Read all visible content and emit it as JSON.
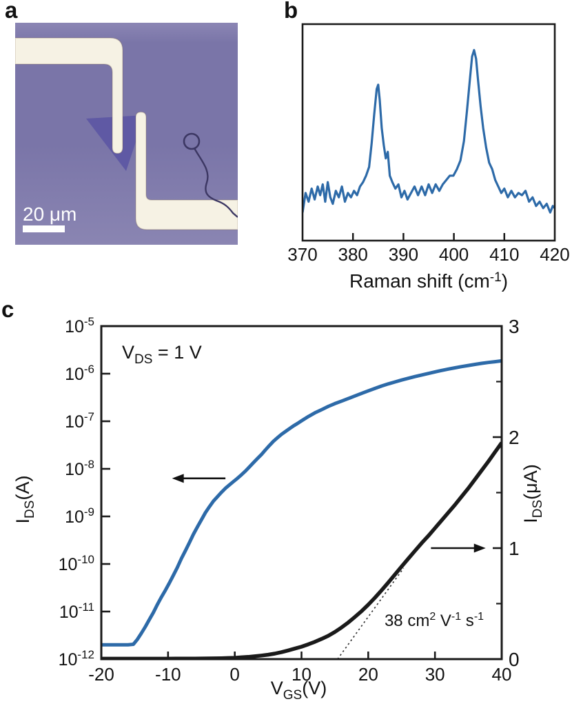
{
  "figure": {
    "type": "scientific-figure",
    "description_visible_panels": [
      "a",
      "b",
      "c"
    ]
  },
  "panels": {
    "a": {
      "label": "a",
      "scale_bar_text": "20 μm",
      "colors": {
        "background_top": "#8b86b4",
        "background": "#7a75a8",
        "background_bottom": "#8a85b2",
        "electrode": "#f6f2e4",
        "flake": "#5f59a4",
        "wire": "#3c3763",
        "scale_bar": "#ffffff"
      }
    },
    "b": {
      "label": "b"
    },
    "c": {
      "label": "c"
    }
  },
  "chart_data": [
    {
      "id": "raman-spectrum",
      "type": "line",
      "title": "",
      "xlabel_segments": [
        {
          "t": "Raman shift (cm"
        },
        {
          "t": "-1",
          "type": "sup"
        },
        {
          "t": ")"
        }
      ],
      "xlim": [
        370,
        420
      ],
      "x_ticks": [
        370,
        380,
        390,
        400,
        410,
        420
      ],
      "ylim": [
        0,
        1
      ],
      "grid": false,
      "legend": "none",
      "line_color": "#2d6aa8",
      "peaks_cm1": [
        385,
        404
      ],
      "points": [
        [
          370,
          0.13
        ],
        [
          370.6,
          0.22
        ],
        [
          371.2,
          0.18
        ],
        [
          371.8,
          0.24
        ],
        [
          372.4,
          0.19
        ],
        [
          373,
          0.25
        ],
        [
          373.5,
          0.21
        ],
        [
          374,
          0.26
        ],
        [
          374.5,
          0.18
        ],
        [
          375,
          0.27
        ],
        [
          375.5,
          0.2
        ],
        [
          376,
          0.17
        ],
        [
          376.6,
          0.23
        ],
        [
          377.2,
          0.2
        ],
        [
          377.8,
          0.25
        ],
        [
          378.4,
          0.18
        ],
        [
          379,
          0.22
        ],
        [
          379.6,
          0.2
        ],
        [
          380.2,
          0.23
        ],
        [
          380.8,
          0.21
        ],
        [
          381.4,
          0.25
        ],
        [
          382,
          0.27
        ],
        [
          382.6,
          0.3
        ],
        [
          383.2,
          0.34
        ],
        [
          383.7,
          0.45
        ],
        [
          384.2,
          0.58
        ],
        [
          384.7,
          0.7
        ],
        [
          385,
          0.72
        ],
        [
          385.3,
          0.65
        ],
        [
          385.7,
          0.52
        ],
        [
          386.1,
          0.44
        ],
        [
          386.5,
          0.38
        ],
        [
          386.9,
          0.41
        ],
        [
          387.3,
          0.3
        ],
        [
          387.8,
          0.27
        ],
        [
          388.4,
          0.24
        ],
        [
          389,
          0.26
        ],
        [
          389.6,
          0.2
        ],
        [
          390.2,
          0.23
        ],
        [
          390.8,
          0.19
        ],
        [
          391.5,
          0.22
        ],
        [
          392.2,
          0.25
        ],
        [
          392.9,
          0.21
        ],
        [
          393.6,
          0.25
        ],
        [
          394.3,
          0.21
        ],
        [
          395,
          0.26
        ],
        [
          395.7,
          0.22
        ],
        [
          396.4,
          0.26
        ],
        [
          397.1,
          0.23
        ],
        [
          397.8,
          0.26
        ],
        [
          398.5,
          0.28
        ],
        [
          399.2,
          0.3
        ],
        [
          399.9,
          0.3
        ],
        [
          400.6,
          0.33
        ],
        [
          401.3,
          0.37
        ],
        [
          402,
          0.46
        ],
        [
          402.6,
          0.6
        ],
        [
          403.2,
          0.75
        ],
        [
          403.6,
          0.85
        ],
        [
          404,
          0.88
        ],
        [
          404.4,
          0.84
        ],
        [
          404.8,
          0.74
        ],
        [
          405.3,
          0.62
        ],
        [
          405.8,
          0.52
        ],
        [
          406.4,
          0.43
        ],
        [
          407,
          0.36
        ],
        [
          407.6,
          0.33
        ],
        [
          408.2,
          0.28
        ],
        [
          408.8,
          0.25
        ],
        [
          409.4,
          0.22
        ],
        [
          410,
          0.24
        ],
        [
          410.7,
          0.2
        ],
        [
          411.4,
          0.23
        ],
        [
          412.1,
          0.2
        ],
        [
          412.8,
          0.22
        ],
        [
          413.5,
          0.21
        ],
        [
          414.2,
          0.23
        ],
        [
          414.9,
          0.18
        ],
        [
          415.6,
          0.2
        ],
        [
          416.3,
          0.16
        ],
        [
          417,
          0.18
        ],
        [
          417.7,
          0.15
        ],
        [
          418.4,
          0.17
        ],
        [
          419.1,
          0.13
        ],
        [
          419.6,
          0.16
        ],
        [
          420,
          0.15
        ]
      ]
    },
    {
      "id": "transfer-curve",
      "type": "line",
      "title": "",
      "xlabel_segments": [
        {
          "t": "V"
        },
        {
          "t": "GS",
          "type": "sub"
        },
        {
          "t": "(V)"
        }
      ],
      "xlim": [
        -20,
        40
      ],
      "x_ticks": [
        -20,
        -10,
        0,
        10,
        20,
        30,
        40
      ],
      "left_axis": {
        "scale": "log",
        "label_segments": [
          {
            "t": "I"
          },
          {
            "t": "DS",
            "type": "sub"
          },
          {
            "t": "(A)"
          }
        ],
        "exponent_ticks": [
          -5,
          -6,
          -7,
          -8,
          -9,
          -10,
          -11,
          -12
        ],
        "lim": [
          1e-12,
          1e-05
        ]
      },
      "right_axis": {
        "scale": "linear",
        "label_segments": [
          {
            "t": "I"
          },
          {
            "t": "DS",
            "type": "sub"
          },
          {
            "t": "(μA)"
          }
        ],
        "ticks": [
          0,
          1,
          2,
          3
        ],
        "minor_ticks": [
          0.5,
          1.5,
          2.5
        ],
        "lim": [
          0,
          3
        ]
      },
      "annotations": {
        "vds_segments": [
          {
            "t": "V"
          },
          {
            "t": "DS",
            "type": "sub"
          },
          {
            "t": " = 1 V"
          }
        ],
        "mobility_segments": [
          {
            "t": "38 cm"
          },
          {
            "t": "2",
            "type": "sup"
          },
          {
            "t": " V"
          },
          {
            "t": "-1",
            "type": "sup"
          },
          {
            "t": " s"
          },
          {
            "t": "-1",
            "type": "sup"
          }
        ]
      },
      "fit_line": {
        "style": "dotted",
        "x1_V": 15.4,
        "y1_uA": 0,
        "x2_V": 25.3,
        "y2_uA": 0.82
      },
      "arrows": [
        {
          "points_to": "left-axis",
          "direction": "left",
          "v_tip": -9.4,
          "v_tail": -1.4,
          "at_current_A": 6.3e-09
        },
        {
          "points_to": "right-axis",
          "direction": "right",
          "v_tip": 37.6,
          "v_tail": 29.4,
          "at_current_uA": 1.0
        }
      ],
      "series": [
        {
          "name": "IDS-log-scale",
          "color": "#2d6aa8",
          "axis": "left",
          "units": "A",
          "points": [
            [
              -20,
              2e-12
            ],
            [
              -19,
              2e-12
            ],
            [
              -18,
              2e-12
            ],
            [
              -17,
              2e-12
            ],
            [
              -16,
              2e-12
            ],
            [
              -15.2,
              2.05e-12
            ],
            [
              -14.6,
              2.6e-12
            ],
            [
              -14,
              3.5e-12
            ],
            [
              -13.4,
              4.8e-12
            ],
            [
              -12.8,
              6.8e-12
            ],
            [
              -12.2,
              9.5e-12
            ],
            [
              -11.6,
              1.4e-11
            ],
            [
              -11,
              2e-11
            ],
            [
              -10.4,
              2.8e-11
            ],
            [
              -9.8,
              4e-11
            ],
            [
              -9.2,
              5.8e-11
            ],
            [
              -8.6,
              8.5e-11
            ],
            [
              -8,
              1.3e-10
            ],
            [
              -7.4,
              1.9e-10
            ],
            [
              -6.8,
              2.8e-10
            ],
            [
              -6.2,
              4.2e-10
            ],
            [
              -5.6,
              6e-10
            ],
            [
              -5,
              8.5e-10
            ],
            [
              -4.4,
              1.2e-09
            ],
            [
              -3.8,
              1.6e-09
            ],
            [
              -3.2,
              2.1e-09
            ],
            [
              -2.6,
              2.6e-09
            ],
            [
              -2,
              3.2e-09
            ],
            [
              -1.4,
              3.9e-09
            ],
            [
              -0.8,
              4.6e-09
            ],
            [
              -0.2,
              5.4e-09
            ],
            [
              0.4,
              6.3e-09
            ],
            [
              1,
              7.5e-09
            ],
            [
              1.6,
              9e-09
            ],
            [
              2.2,
              1.1e-08
            ],
            [
              2.8,
              1.35e-08
            ],
            [
              3.4,
              1.65e-08
            ],
            [
              4,
              2e-08
            ],
            [
              4.6,
              2.5e-08
            ],
            [
              5.2,
              3.1e-08
            ],
            [
              5.8,
              3.8e-08
            ],
            [
              6.4,
              4.5e-08
            ],
            [
              7,
              5.3e-08
            ],
            [
              7.6,
              6.1e-08
            ],
            [
              8.2,
              7e-08
            ],
            [
              8.8,
              8e-08
            ],
            [
              9.4,
              9e-08
            ],
            [
              10,
              1.02e-07
            ],
            [
              11,
              1.25e-07
            ],
            [
              12,
              1.5e-07
            ],
            [
              13,
              1.75e-07
            ],
            [
              14,
              2.05e-07
            ],
            [
              15,
              2.35e-07
            ],
            [
              16,
              2.65e-07
            ],
            [
              17,
              3e-07
            ],
            [
              18,
              3.4e-07
            ],
            [
              19,
              3.85e-07
            ],
            [
              20,
              4.35e-07
            ],
            [
              21,
              4.9e-07
            ],
            [
              22,
              5.5e-07
            ],
            [
              23,
              6.1e-07
            ],
            [
              24,
              6.7e-07
            ],
            [
              25,
              7.35e-07
            ],
            [
              26,
              8e-07
            ],
            [
              27,
              8.7e-07
            ],
            [
              28,
              9.4e-07
            ],
            [
              29,
              1.01e-06
            ],
            [
              30,
              1.09e-06
            ],
            [
              31,
              1.17e-06
            ],
            [
              32,
              1.25e-06
            ],
            [
              33,
              1.33e-06
            ],
            [
              34,
              1.41e-06
            ],
            [
              35,
              1.49e-06
            ],
            [
              36,
              1.57e-06
            ],
            [
              37,
              1.65e-06
            ],
            [
              38,
              1.72e-06
            ],
            [
              39,
              1.79e-06
            ],
            [
              40,
              1.86e-06
            ]
          ]
        },
        {
          "name": "IDS-linear-scale",
          "color": "#1a1a1a",
          "axis": "right",
          "units": "μA",
          "points": [
            [
              -20,
              0.004
            ],
            [
              -18,
              0.004
            ],
            [
              -16,
              0.004
            ],
            [
              -14,
              0.004
            ],
            [
              -12,
              0.004
            ],
            [
              -10,
              0.004
            ],
            [
              -8,
              0.005
            ],
            [
              -6,
              0.005
            ],
            [
              -4,
              0.006
            ],
            [
              -2,
              0.008
            ],
            [
              -1,
              0.01
            ],
            [
              0,
              0.012
            ],
            [
              1,
              0.016
            ],
            [
              2,
              0.02
            ],
            [
              3,
              0.026
            ],
            [
              4,
              0.032
            ],
            [
              5,
              0.04
            ],
            [
              6,
              0.05
            ],
            [
              7,
              0.063
            ],
            [
              8,
              0.078
            ],
            [
              9,
              0.095
            ],
            [
              10,
              0.112
            ],
            [
              11,
              0.133
            ],
            [
              12,
              0.156
            ],
            [
              13,
              0.182
            ],
            [
              14,
              0.21
            ],
            [
              15,
              0.245
            ],
            [
              16,
              0.285
            ],
            [
              17,
              0.33
            ],
            [
              18,
              0.38
            ],
            [
              19,
              0.432
            ],
            [
              20,
              0.49
            ],
            [
              21,
              0.553
            ],
            [
              22,
              0.62
            ],
            [
              23,
              0.69
            ],
            [
              24,
              0.762
            ],
            [
              25,
              0.835
            ],
            [
              26,
              0.905
            ],
            [
              27,
              0.975
            ],
            [
              28,
              1.045
            ],
            [
              29,
              1.11
            ],
            [
              30,
              1.18
            ],
            [
              31,
              1.25
            ],
            [
              32,
              1.32
            ],
            [
              33,
              1.39
            ],
            [
              34,
              1.465
            ],
            [
              35,
              1.54
            ],
            [
              36,
              1.62
            ],
            [
              37,
              1.7
            ],
            [
              38,
              1.78
            ],
            [
              39,
              1.865
            ],
            [
              40,
              1.95
            ]
          ]
        }
      ]
    }
  ]
}
